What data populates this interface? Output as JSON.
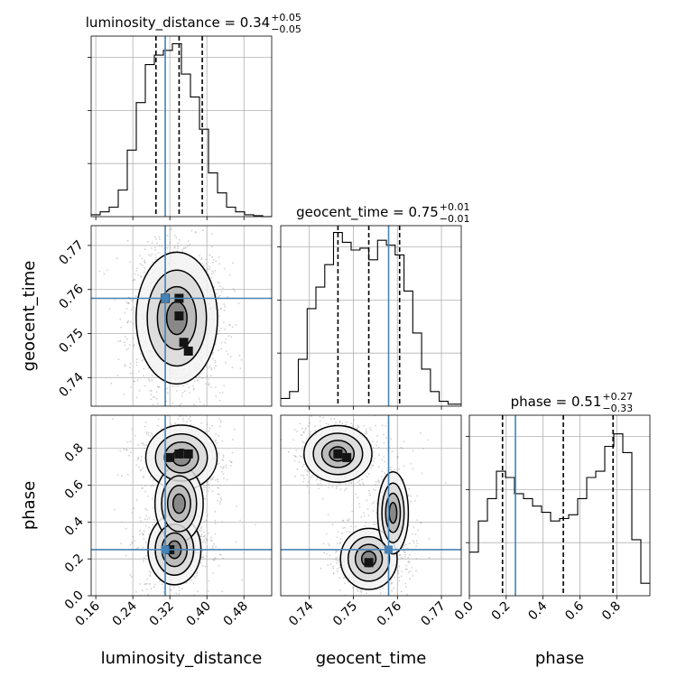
{
  "chart_data": {
    "type": "corner",
    "parameters": [
      "luminosity_distance",
      "geocent_time",
      "phase"
    ],
    "axis_labels": {
      "x": [
        "luminosity_distance",
        "geocent_time",
        "phase"
      ],
      "y": [
        "geocent_time",
        "phase"
      ]
    },
    "truth": {
      "luminosity_distance": 0.31,
      "geocent_time": 0.758,
      "phase": 0.25
    },
    "colors": {
      "truth": "#4682b4",
      "hist": "#000000",
      "points": "#9a9a9a",
      "contour": "#000000",
      "grid": "#b0b0b0"
    },
    "grid": true,
    "diagonals": [
      {
        "parameter": "luminosity_distance",
        "title": {
          "main": "luminosity_distance = 0.34",
          "sup": "+0.05",
          "sub": "−0.05"
        },
        "range": [
          0.15,
          0.54
        ],
        "ticks": [
          0.16,
          0.24,
          0.32,
          0.4,
          0.48
        ],
        "tick_labels": [
          "0.16",
          "0.24",
          "0.32",
          "0.40",
          "0.48"
        ],
        "quantiles": [
          0.29,
          0.34,
          0.39
        ],
        "bin_edges": [
          0.15,
          0.1695,
          0.189,
          0.2085,
          0.228,
          0.2475,
          0.267,
          0.2865,
          0.306,
          0.3255,
          0.345,
          0.3645,
          0.384,
          0.4035,
          0.423,
          0.4425,
          0.462,
          0.4815,
          0.501,
          0.5205,
          0.54
        ],
        "counts": [
          2,
          5,
          10,
          28,
          70,
          120,
          160,
          170,
          175,
          182,
          150,
          126,
          92,
          46,
          25,
          10,
          5,
          2,
          1,
          0
        ],
        "count_max": 190
      },
      {
        "parameter": "geocent_time",
        "title": {
          "main": "geocent_time = 0.75",
          "sup": "+0.01",
          "sub": "−0.01"
        },
        "range": [
          0.7335,
          0.7745
        ],
        "ticks": [
          0.74,
          0.75,
          0.76,
          0.77
        ],
        "tick_labels": [
          "0.74",
          "0.75",
          "0.76",
          "0.77"
        ],
        "quantiles": [
          0.7465,
          0.7535,
          0.7605
        ],
        "bin_edges": [
          0.7335,
          0.7355,
          0.7375,
          0.7395,
          0.7415,
          0.7435,
          0.7455,
          0.7475,
          0.7495,
          0.7515,
          0.7535,
          0.7555,
          0.7575,
          0.7595,
          0.7615,
          0.7635,
          0.7655,
          0.7675,
          0.7695,
          0.7715,
          0.7745
        ],
        "counts": [
          8,
          15,
          48,
          100,
          122,
          145,
          178,
          168,
          160,
          162,
          150,
          170,
          165,
          155,
          118,
          75,
          38,
          15,
          5,
          2
        ],
        "count_max": 185
      },
      {
        "parameter": "phase",
        "title": {
          "main": "phase = 0.51",
          "sup": "+0.27",
          "sub": "−0.33"
        },
        "range": [
          0.0,
          0.98
        ],
        "ticks": [
          0.0,
          0.2,
          0.4,
          0.6,
          0.8
        ],
        "tick_labels": [
          "0.0",
          "0.2",
          "0.4",
          "0.6",
          "0.8"
        ],
        "quantiles": [
          0.18,
          0.51,
          0.78
        ],
        "bin_edges": [
          0.0,
          0.049,
          0.098,
          0.147,
          0.196,
          0.245,
          0.294,
          0.343,
          0.392,
          0.441,
          0.49,
          0.539,
          0.588,
          0.637,
          0.686,
          0.735,
          0.784,
          0.833,
          0.882,
          0.931,
          0.98
        ],
        "counts": [
          35,
          60,
          78,
          100,
          95,
          82,
          78,
          72,
          67,
          60,
          62,
          65,
          78,
          95,
          100,
          120,
          130,
          115,
          45,
          10
        ],
        "count_max": 145
      }
    ],
    "pairs": [
      {
        "x": "luminosity_distance",
        "y": "geocent_time",
        "y_range": [
          0.7335,
          0.7745
        ],
        "y_ticks": [
          0.74,
          0.75,
          0.76,
          0.77
        ],
        "y_tick_labels": [
          "0.74",
          "0.75",
          "0.76",
          "0.77"
        ],
        "modes": [
          {
            "x": 0.335,
            "y": 0.7535,
            "sx": 0.04,
            "sy": 0.0068,
            "w": 1.0
          }
        ],
        "dense_cells": [
          [
            0.31,
            0.758
          ],
          [
            0.34,
            0.758
          ],
          [
            0.34,
            0.754
          ],
          [
            0.35,
            0.748
          ],
          [
            0.36,
            0.746
          ]
        ]
      },
      {
        "x": "luminosity_distance",
        "y": "phase",
        "y_range": [
          0.0,
          0.98
        ],
        "y_ticks": [
          0.0,
          0.2,
          0.4,
          0.6,
          0.8
        ],
        "y_tick_labels": [
          "0.0",
          "0.2",
          "0.4",
          "0.6",
          "0.8"
        ],
        "modes": [
          {
            "x": 0.345,
            "y": 0.75,
            "sx": 0.035,
            "sy": 0.08,
            "w": 1.0
          },
          {
            "x": 0.33,
            "y": 0.25,
            "sx": 0.03,
            "sy": 0.1,
            "w": 0.75
          },
          {
            "x": 0.34,
            "y": 0.5,
            "sx": 0.04,
            "sy": 0.16,
            "w": 0.35
          }
        ],
        "dense_cells": [
          [
            0.34,
            0.77
          ],
          [
            0.36,
            0.77
          ],
          [
            0.32,
            0.75
          ],
          [
            0.32,
            0.25
          ]
        ]
      },
      {
        "x": "geocent_time",
        "y": "phase",
        "y_range": [
          0.0,
          0.98
        ],
        "y_ticks": [
          0.0,
          0.2,
          0.4,
          0.6,
          0.8
        ],
        "y_tick_labels": [
          "0.0",
          "0.2",
          "0.4",
          "0.6",
          "0.8"
        ],
        "modes": [
          {
            "x": 0.7465,
            "y": 0.77,
            "sx": 0.0035,
            "sy": 0.07,
            "w": 1.0
          },
          {
            "x": 0.7535,
            "y": 0.2,
            "sx": 0.0035,
            "sy": 0.09,
            "w": 0.7
          },
          {
            "x": 0.759,
            "y": 0.45,
            "sx": 0.0025,
            "sy": 0.16,
            "w": 0.4
          }
        ],
        "dense_cells": [
          [
            0.7465,
            0.77
          ],
          [
            0.7485,
            0.75
          ],
          [
            0.7535,
            0.18
          ]
        ]
      }
    ]
  }
}
